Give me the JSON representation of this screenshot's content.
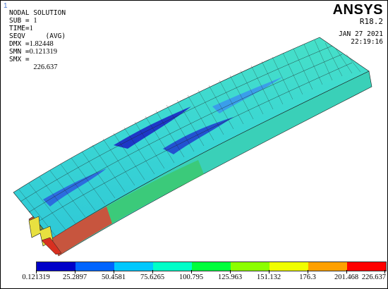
{
  "window": {
    "number": "1"
  },
  "info": {
    "title": "NODAL SOLUTION",
    "sub_label": "SUB =",
    "sub_value": "1",
    "time_label": "TIME=",
    "time_value": "1",
    "result": "SEQV     (AVG)",
    "dmx_label": "DMX =",
    "dmx_value": "1.82448",
    "smn_label": "SMN =",
    "smn_value": "0.121319",
    "smx_label": "SMX =",
    "smx_value": "226.637"
  },
  "brand": {
    "logo": "ANSYS",
    "version": "R18.2"
  },
  "stamp": {
    "date": "JAN 27 2021",
    "time": "22:19:16"
  },
  "legend": {
    "colors": [
      "#0000c8",
      "#0064ff",
      "#00c8ff",
      "#00ffc8",
      "#00ff3c",
      "#8cff00",
      "#f0ff00",
      "#ffa000",
      "#ff0000"
    ],
    "labels": [
      "0.121319",
      "25.2897",
      "50.4581",
      "75.6265",
      "100.795",
      "125.963",
      "151.132",
      "176.3",
      "201.468",
      "226.637"
    ]
  },
  "model": {
    "colors": {
      "dominant": "#39d9d2",
      "low": "#1a2fc4",
      "mid": "#3fa3f0",
      "edge_green": "#35c65c",
      "edge_yellow": "#d7e83a",
      "edge_red": "#e03020"
    }
  }
}
